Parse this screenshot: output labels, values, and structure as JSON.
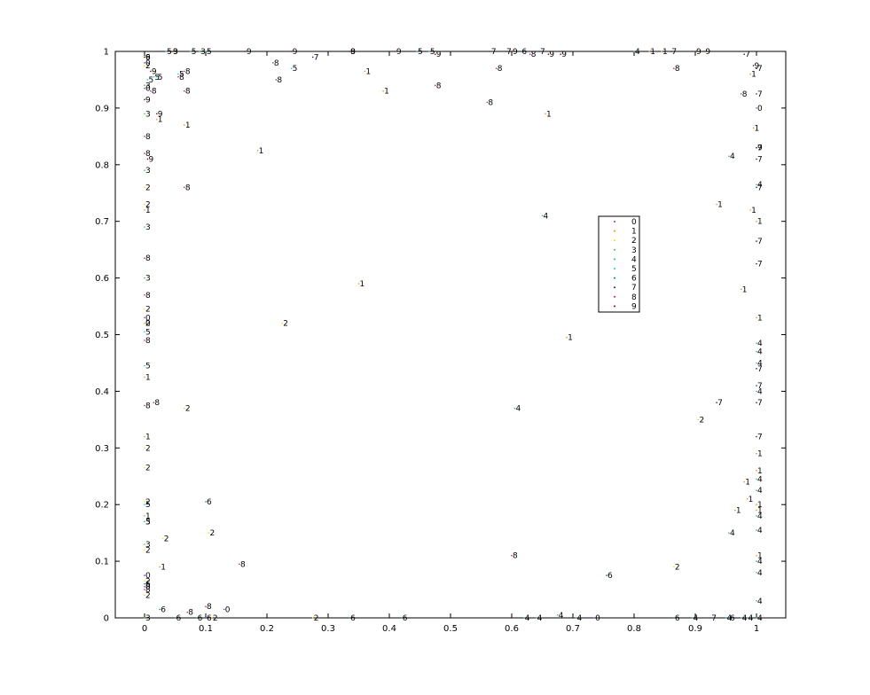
{
  "chart_data": {
    "type": "scatter",
    "title": "",
    "xlabel": "",
    "ylabel": "",
    "xlim": [
      0,
      1
    ],
    "ylim": [
      0,
      1
    ],
    "grid": false,
    "legend_position": "center-right",
    "x_ticks": [
      "0",
      "0.1",
      "0.2",
      "0.3",
      "0.4",
      "0.5",
      "0.6",
      "0.7",
      "0.8",
      "0.9",
      "1"
    ],
    "y_ticks": [
      "0",
      "0.1",
      "0.2",
      "0.3",
      "0.4",
      "0.5",
      "0.6",
      "0.7",
      "0.8",
      "0.9",
      "1"
    ],
    "series": [
      {
        "name": "0",
        "color": "#8a2be2",
        "points": [
          [
            0.0,
            0.53
          ],
          [
            0.0,
            0.52
          ],
          [
            0.0,
            0.935
          ],
          [
            0.0,
            0.075
          ],
          [
            0.0,
            0.98
          ],
          [
            0.13,
            0.015
          ],
          [
            0.735,
            0.0
          ],
          [
            1.0,
            0.9
          ],
          [
            0.0,
            0.055
          ]
        ]
      },
      {
        "name": "1",
        "color": "#ff8c00",
        "points": [
          [
            0.0,
            0.425
          ],
          [
            0.0,
            0.32
          ],
          [
            0.0,
            0.72
          ],
          [
            0.0,
            0.18
          ],
          [
            0.025,
            0.09
          ],
          [
            0.065,
            0.87
          ],
          [
            0.185,
            0.825
          ],
          [
            0.35,
            0.59
          ],
          [
            0.36,
            0.965
          ],
          [
            0.39,
            0.93
          ],
          [
            0.655,
            0.89
          ],
          [
            0.69,
            0.495
          ],
          [
            0.935,
            0.73
          ],
          [
            0.965,
            0.19
          ],
          [
            0.975,
            0.58
          ],
          [
            0.98,
            0.24
          ],
          [
            0.985,
            0.21
          ],
          [
            0.99,
            0.72
          ],
          [
            0.995,
            0.865
          ],
          [
            1.0,
            0.7
          ],
          [
            1.0,
            0.53
          ],
          [
            1.0,
            0.29
          ],
          [
            1.0,
            0.26
          ],
          [
            1.0,
            0.2
          ],
          [
            1.0,
            0.11
          ],
          [
            0.825,
            1.0
          ],
          [
            0.845,
            1.0
          ],
          [
            0.99,
            0.96
          ],
          [
            1.0,
            0.19
          ],
          [
            0.02,
            0.88
          ]
        ]
      },
      {
        "name": "2",
        "color": "#ffd700",
        "points": [
          [
            0.0,
            0.265
          ],
          [
            0.0,
            0.545
          ],
          [
            0.0,
            0.52
          ],
          [
            0.0,
            0.3
          ],
          [
            0.0,
            0.73
          ],
          [
            0.0,
            0.04
          ],
          [
            0.0,
            0.12
          ],
          [
            0.0,
            0.205
          ],
          [
            0.03,
            0.14
          ],
          [
            0.065,
            0.37
          ],
          [
            0.105,
            0.15
          ],
          [
            0.225,
            0.52
          ],
          [
            0.275,
            0.0
          ],
          [
            0.865,
            0.09
          ],
          [
            0.905,
            0.35
          ],
          [
            0.0,
            0.065
          ],
          [
            0.11,
            0.0
          ],
          [
            0.0,
            0.975
          ],
          [
            0.0,
            0.76
          ]
        ]
      },
      {
        "name": "3",
        "color": "#32cd32",
        "points": [
          [
            0.0,
            0.69
          ],
          [
            0.0,
            0.6
          ],
          [
            0.0,
            0.79
          ],
          [
            0.0,
            0.89
          ],
          [
            0.0,
            0.17
          ],
          [
            0.0,
            0.13
          ],
          [
            0.0,
            0.0
          ],
          [
            0.0,
            0.94
          ],
          [
            0.045,
            1.0
          ],
          [
            0.09,
            1.0
          ]
        ]
      },
      {
        "name": "4",
        "color": "#20b2aa",
        "points": [
          [
            0.605,
            0.37
          ],
          [
            0.65,
            0.71
          ],
          [
            0.955,
            0.815
          ],
          [
            0.955,
            0.15
          ],
          [
            0.8,
            1.0
          ],
          [
            1.0,
            0.485
          ],
          [
            1.0,
            0.45
          ],
          [
            1.0,
            0.4
          ],
          [
            1.0,
            0.245
          ],
          [
            1.0,
            0.225
          ],
          [
            1.0,
            0.18
          ],
          [
            1.0,
            0.155
          ],
          [
            1.0,
            0.1
          ],
          [
            1.0,
            0.08
          ],
          [
            1.0,
            0.765
          ],
          [
            1.0,
            0.47
          ],
          [
            0.62,
            0.0
          ],
          [
            0.64,
            0.0
          ],
          [
            0.675,
            0.005
          ],
          [
            0.705,
            0.0
          ],
          [
            0.895,
            0.0
          ],
          [
            0.95,
            0.0
          ],
          [
            0.975,
            0.0
          ],
          [
            0.985,
            0.0
          ],
          [
            1.0,
            0.03
          ],
          [
            1.0,
            0.0
          ]
        ]
      },
      {
        "name": "5",
        "color": "#00ced1",
        "points": [
          [
            0.005,
            0.95
          ],
          [
            0.015,
            0.955
          ],
          [
            0.02,
            0.955
          ],
          [
            0.035,
            1.0
          ],
          [
            0.055,
            0.96
          ],
          [
            0.24,
            0.97
          ],
          [
            0.445,
            1.0
          ],
          [
            0.465,
            1.0
          ],
          [
            0.0,
            0.505
          ],
          [
            0.0,
            0.445
          ],
          [
            0.0,
            0.2
          ],
          [
            0.0,
            0.17
          ],
          [
            0.075,
            1.0
          ],
          [
            0.1,
            1.0
          ]
        ]
      },
      {
        "name": "6",
        "color": "#008080",
        "points": [
          [
            0.1,
            0.205
          ],
          [
            0.615,
            1.0
          ],
          [
            0.755,
            0.075
          ],
          [
            0.865,
            0.0
          ],
          [
            0.955,
            0.0
          ],
          [
            0.335,
            0.0
          ],
          [
            0.42,
            0.0
          ],
          [
            0.1,
            0.0
          ],
          [
            0.085,
            0.0
          ],
          [
            0.025,
            0.015
          ],
          [
            0.05,
            0.0
          ],
          [
            0.0,
            0.06
          ],
          [
            0.0,
            0.99
          ]
        ]
      },
      {
        "name": "7",
        "color": "#191970",
        "points": [
          [
            0.275,
            0.99
          ],
          [
            0.565,
            1.0
          ],
          [
            0.59,
            1.0
          ],
          [
            0.645,
            1.0
          ],
          [
            0.86,
            1.0
          ],
          [
            0.935,
            0.38
          ],
          [
            0.925,
            0.0
          ],
          [
            1.0,
            0.81
          ],
          [
            1.0,
            0.83
          ],
          [
            1.0,
            0.76
          ],
          [
            1.0,
            0.665
          ],
          [
            1.0,
            0.625
          ],
          [
            1.0,
            0.44
          ],
          [
            1.0,
            0.41
          ],
          [
            1.0,
            0.38
          ],
          [
            1.0,
            0.32
          ],
          [
            1.0,
            0.925
          ],
          [
            1.0,
            0.97
          ],
          [
            0.98,
            0.995
          ]
        ]
      },
      {
        "name": "8",
        "color": "#c71585",
        "points": [
          [
            0.065,
            0.965
          ],
          [
            0.065,
            0.93
          ],
          [
            0.065,
            0.76
          ],
          [
            0.015,
            0.38
          ],
          [
            0.0,
            0.85
          ],
          [
            0.0,
            0.82
          ],
          [
            0.0,
            0.375
          ],
          [
            0.0,
            0.49
          ],
          [
            0.0,
            0.57
          ],
          [
            0.0,
            0.635
          ],
          [
            0.0,
            0.05
          ],
          [
            0.07,
            0.01
          ],
          [
            0.1,
            0.02
          ],
          [
            0.055,
            0.955
          ],
          [
            0.21,
            0.98
          ],
          [
            0.215,
            0.95
          ],
          [
            0.335,
            1.0
          ],
          [
            0.475,
            0.94
          ],
          [
            0.56,
            0.91
          ],
          [
            0.575,
            0.97
          ],
          [
            0.6,
            0.11
          ],
          [
            0.63,
            0.995
          ],
          [
            0.865,
            0.97
          ],
          [
            0.975,
            0.925
          ],
          [
            0.01,
            0.93
          ],
          [
            0.155,
            0.095
          ]
        ]
      },
      {
        "name": "9",
        "color": "#8b0000",
        "points": [
          [
            0.005,
            0.81
          ],
          [
            0.01,
            0.965
          ],
          [
            0.02,
            0.89
          ],
          [
            0.24,
            1.0
          ],
          [
            0.41,
            1.0
          ],
          [
            0.475,
            0.995
          ],
          [
            0.66,
            0.995
          ],
          [
            0.68,
            0.995
          ],
          [
            0.6,
            1.0
          ],
          [
            0.9,
            1.0
          ],
          [
            0.915,
            1.0
          ],
          [
            0.995,
            0.975
          ],
          [
            1.0,
            0.83
          ],
          [
            0.0,
            0.915
          ],
          [
            0.0,
            0.99
          ],
          [
            0.165,
            1.0
          ],
          [
            0.335,
            1.0
          ],
          [
            0.045,
            1.0
          ]
        ]
      }
    ]
  }
}
